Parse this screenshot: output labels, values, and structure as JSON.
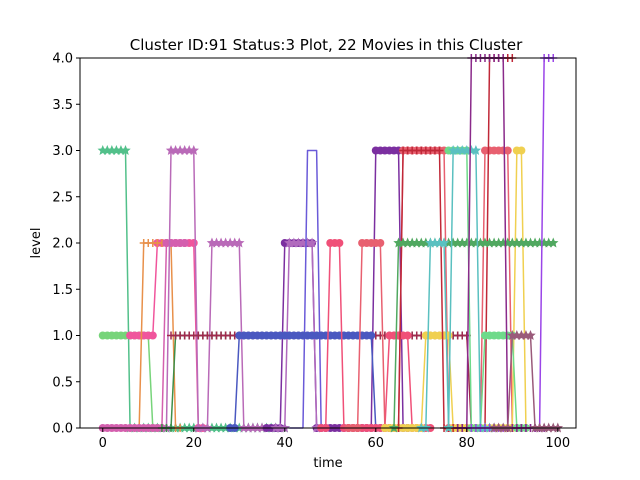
{
  "chart_data": {
    "type": "line",
    "title": "Cluster ID:91 Status:3 Plot, 22 Movies in this Cluster",
    "xlabel": "time",
    "ylabel": "level",
    "xlim": [
      -5,
      104
    ],
    "ylim": [
      0,
      4.0
    ],
    "x_ticks": [
      0,
      20,
      40,
      60,
      80,
      100
    ],
    "y_ticks": [
      0.0,
      0.5,
      1.0,
      1.5,
      2.0,
      2.5,
      3.0,
      3.5,
      4.0
    ],
    "x_tick_labels": [
      "0",
      "20",
      "40",
      "60",
      "80",
      "100"
    ],
    "y_tick_labels": [
      "0.0",
      "0.5",
      "1.0",
      "1.5",
      "2.0",
      "2.5",
      "3.0",
      "3.5",
      "4.0"
    ],
    "grid": false,
    "legend": "none",
    "series_count": 22,
    "series": [
      {
        "color": "#52c08a",
        "marker": "star",
        "x": [
          0,
          1,
          2,
          3,
          4,
          5,
          6,
          7,
          8,
          9,
          10,
          11,
          12,
          13,
          14,
          15,
          16,
          17,
          18,
          19,
          20,
          21,
          22,
          23,
          24,
          25,
          26,
          27,
          28,
          29,
          30,
          31,
          32,
          33,
          34,
          35,
          36,
          37,
          38,
          39,
          40
        ],
        "y": [
          3,
          3,
          3,
          3,
          3,
          3,
          0,
          0,
          0,
          0,
          0,
          0,
          0,
          0,
          0,
          0,
          0,
          0,
          0,
          0,
          0,
          0,
          0,
          0,
          0,
          0,
          0,
          0,
          0,
          0,
          0,
          0,
          0,
          0,
          0,
          0,
          0,
          0,
          0,
          0,
          0
        ]
      },
      {
        "color": "#77d47a",
        "marker": "circle",
        "x": [
          0,
          1,
          2,
          3,
          4,
          5,
          6,
          7,
          8,
          9,
          10,
          11,
          12
        ],
        "y": [
          1,
          1,
          1,
          1,
          1,
          1,
          1,
          1,
          1,
          1,
          1,
          0,
          0
        ]
      },
      {
        "color": "#f0559c",
        "marker": "circle",
        "x": [
          6,
          7,
          8,
          9,
          10,
          11,
          12,
          13,
          14,
          15,
          16,
          17,
          18,
          19,
          20,
          21,
          22
        ],
        "y": [
          1,
          1,
          1,
          1,
          1,
          1,
          2,
          2,
          2,
          2,
          2,
          2,
          2,
          2,
          2,
          0,
          0
        ]
      },
      {
        "color": "#e8904a",
        "marker": "plus",
        "x": [
          5,
          6,
          7,
          8,
          9,
          10,
          11,
          12,
          13,
          14,
          15,
          16,
          17
        ],
        "y": [
          0,
          0,
          0,
          0,
          2,
          2,
          2,
          2,
          2,
          2,
          2,
          0,
          0
        ]
      },
      {
        "color": "#d45fae",
        "marker": "circle",
        "x": [
          0,
          1,
          2,
          3,
          4,
          5,
          6,
          7,
          8,
          9,
          10,
          11,
          12,
          13,
          14,
          15,
          16,
          17,
          18
        ],
        "y": [
          0,
          0,
          0,
          0,
          0,
          0,
          0,
          0,
          0,
          0,
          0,
          0,
          0,
          0,
          2,
          2,
          2,
          2,
          2
        ]
      },
      {
        "color": "#b96ab8",
        "marker": "star",
        "x": [
          14,
          15,
          16,
          17,
          18,
          19,
          20,
          21,
          22,
          23,
          24,
          25,
          26,
          27,
          28,
          29,
          30,
          31,
          32,
          33,
          34,
          35
        ],
        "y": [
          0,
          3,
          3,
          3,
          3,
          3,
          3,
          0,
          0,
          0,
          2,
          2,
          2,
          2,
          2,
          2,
          2,
          0,
          0,
          0,
          0,
          0
        ]
      },
      {
        "color": "#3e8f4a",
        "marker": "plus",
        "x": [
          13,
          14,
          15,
          16,
          17,
          18,
          19,
          20,
          21,
          22,
          23,
          24,
          25,
          26,
          27,
          28,
          29,
          30,
          31,
          32,
          33,
          34,
          35,
          36,
          37,
          38,
          39,
          40,
          41,
          42,
          43,
          44,
          45,
          46,
          47,
          48,
          49,
          50,
          51,
          52,
          53,
          54,
          55,
          56,
          57,
          58,
          59,
          60,
          61,
          62,
          63,
          64,
          65,
          66,
          67,
          68,
          69,
          70,
          71,
          72,
          73,
          74,
          75,
          76,
          77,
          78,
          79,
          80
        ],
        "y": [
          0,
          0,
          0,
          1,
          1,
          1,
          1,
          1,
          1,
          1,
          1,
          1,
          1,
          1,
          1,
          1,
          1,
          1,
          1,
          1,
          1,
          1,
          1,
          1,
          1,
          1,
          1,
          1,
          1,
          1,
          1,
          1,
          1,
          1,
          1,
          1,
          1,
          1,
          1,
          1,
          1,
          1,
          1,
          1,
          1,
          1,
          1,
          1,
          1,
          1,
          1,
          1,
          1,
          1,
          1,
          1,
          1,
          1,
          1,
          1,
          1,
          1,
          1,
          1,
          1,
          1,
          1,
          1
        ]
      },
      {
        "color": "#a02a4e",
        "marker": "plus",
        "x": [
          15,
          16,
          17,
          18,
          19,
          20,
          21,
          22,
          23,
          24,
          25,
          26,
          27,
          28,
          29,
          30,
          31,
          32,
          33,
          34,
          35,
          36,
          37,
          38,
          39,
          40,
          41,
          42,
          43,
          44,
          45,
          46,
          47,
          48,
          49,
          50,
          51,
          52,
          53,
          54,
          55,
          56,
          57,
          58,
          59,
          60,
          61,
          62,
          63,
          64,
          65,
          66,
          67,
          68,
          69,
          70,
          71,
          72,
          73,
          74,
          75,
          76,
          77,
          78,
          79,
          80,
          81,
          82,
          83,
          84,
          85
        ],
        "y": [
          1,
          1,
          1,
          1,
          1,
          1,
          1,
          1,
          1,
          1,
          1,
          1,
          1,
          1,
          1,
          1,
          1,
          1,
          1,
          1,
          1,
          1,
          1,
          1,
          1,
          1,
          1,
          1,
          1,
          1,
          1,
          1,
          1,
          1,
          1,
          1,
          1,
          1,
          1,
          1,
          1,
          1,
          1,
          1,
          1,
          1,
          1,
          1,
          1,
          1,
          1,
          1,
          1,
          1,
          1,
          1,
          1,
          1,
          1,
          1,
          1,
          1,
          1,
          1,
          1,
          1,
          0,
          0,
          0,
          0,
          0
        ]
      },
      {
        "color": "#7b2fa0",
        "marker": "circle",
        "x": [
          36,
          37,
          38,
          39,
          40,
          41,
          42,
          43,
          44,
          45,
          46,
          47,
          48,
          49,
          50,
          51,
          52,
          53,
          54,
          55,
          56,
          57,
          58,
          59,
          60,
          61,
          62,
          63,
          64,
          65,
          66,
          67
        ],
        "y": [
          0,
          0,
          0,
          0,
          2,
          2,
          2,
          2,
          2,
          2,
          2,
          0,
          0,
          0,
          0,
          0,
          0,
          0,
          0,
          0,
          0,
          0,
          0,
          0,
          3,
          3,
          3,
          3,
          3,
          3,
          0,
          0
        ]
      },
      {
        "color": "#b06abd",
        "marker": "star",
        "x": [
          38,
          39,
          40,
          41,
          42,
          43,
          44,
          45,
          46,
          47
        ],
        "y": [
          0,
          0,
          0,
          2,
          2,
          2,
          2,
          2,
          2,
          0
        ]
      },
      {
        "color": "#6a5ad8",
        "marker": "none",
        "x": [
          41,
          42,
          43,
          44,
          45,
          46,
          47,
          48
        ],
        "y": [
          0,
          0,
          0,
          0,
          3,
          3,
          3,
          0
        ]
      },
      {
        "color": "#4a58c0",
        "marker": "circle",
        "x": [
          28,
          29,
          30,
          31,
          32,
          33,
          34,
          35,
          36,
          37,
          38,
          39,
          40,
          41,
          42,
          43,
          44,
          45,
          46,
          47,
          48,
          49,
          50,
          51,
          52,
          53,
          54,
          55,
          56,
          57,
          58,
          59,
          60,
          61,
          62,
          63
        ],
        "y": [
          0,
          0,
          1,
          1,
          1,
          1,
          1,
          1,
          1,
          1,
          1,
          1,
          1,
          1,
          1,
          1,
          1,
          1,
          1,
          1,
          1,
          1,
          1,
          1,
          1,
          1,
          1,
          1,
          1,
          1,
          1,
          1,
          0,
          0,
          0,
          0
        ]
      },
      {
        "color": "#f05078",
        "marker": "circle",
        "x": [
          48,
          49,
          50,
          51,
          52,
          53,
          54,
          55,
          56,
          57,
          58,
          59,
          60,
          61,
          62,
          63,
          64,
          65,
          66,
          67,
          68,
          69,
          70,
          71,
          72
        ],
        "y": [
          0,
          0,
          2,
          2,
          2,
          0,
          0,
          0,
          0,
          0,
          0,
          0,
          0,
          0,
          0,
          1,
          1,
          1,
          1,
          1,
          0,
          0,
          0,
          0,
          0
        ]
      },
      {
        "color": "#e86070",
        "marker": "circle",
        "x": [
          54,
          55,
          56,
          57,
          58,
          59,
          60,
          61,
          62,
          63,
          64,
          65,
          66,
          67,
          68,
          69,
          70,
          71,
          72,
          73,
          74,
          75,
          76,
          77,
          78,
          79,
          80,
          81,
          82,
          83,
          84,
          85,
          86,
          87,
          88,
          89,
          90
        ],
        "y": [
          0,
          0,
          0,
          2,
          2,
          2,
          2,
          2,
          0,
          0,
          0,
          0,
          3,
          3,
          3,
          3,
          3,
          3,
          3,
          3,
          3,
          3,
          0,
          0,
          0,
          0,
          0,
          0,
          0,
          0,
          3,
          3,
          3,
          3,
          3,
          3,
          0
        ]
      },
      {
        "color": "#f0d050",
        "marker": "circle",
        "x": [
          62,
          63,
          64,
          65,
          66,
          67,
          68,
          69,
          70,
          71,
          72,
          73,
          74,
          75,
          76,
          77,
          78,
          79,
          80,
          81,
          82,
          83,
          84,
          85,
          86,
          87,
          88,
          89,
          90,
          91,
          92,
          93
        ],
        "y": [
          0,
          0,
          0,
          0,
          0,
          0,
          0,
          0,
          0,
          1,
          1,
          1,
          1,
          1,
          1,
          0,
          0,
          0,
          0,
          0,
          0,
          0,
          0,
          0,
          0,
          0,
          0,
          0,
          0,
          3,
          3,
          0
        ]
      },
      {
        "color": "#c02838",
        "marker": "plus",
        "x": [
          65,
          66,
          67,
          68,
          69,
          70,
          71,
          72,
          73,
          74,
          75,
          76,
          77,
          78,
          79,
          80,
          81,
          82,
          83,
          84,
          85,
          86,
          87,
          88,
          89,
          90
        ],
        "y": [
          0,
          3,
          3,
          3,
          3,
          3,
          3,
          3,
          3,
          3,
          0,
          0,
          0,
          0,
          0,
          0,
          0,
          0,
          0,
          0,
          4,
          4,
          4,
          4,
          4,
          4
        ]
      },
      {
        "color": "#50a860",
        "marker": "star",
        "x": [
          64,
          65,
          66,
          67,
          68,
          69,
          70,
          71,
          72,
          73,
          74,
          75,
          76,
          77,
          78,
          79,
          80,
          81,
          82,
          83,
          84,
          85,
          86,
          87,
          88,
          89,
          90,
          91,
          92,
          93,
          94,
          95,
          96,
          97,
          98,
          99
        ],
        "y": [
          0,
          2,
          2,
          2,
          2,
          2,
          2,
          2,
          2,
          2,
          2,
          2,
          2,
          2,
          2,
          2,
          2,
          2,
          2,
          2,
          2,
          2,
          2,
          2,
          2,
          2,
          2,
          2,
          2,
          2,
          2,
          2,
          2,
          2,
          2,
          2
        ]
      },
      {
        "color": "#6eda8a",
        "marker": "circle",
        "x": [
          76,
          77,
          78,
          79,
          80,
          81,
          82,
          83,
          84,
          85,
          86,
          87,
          88,
          89,
          90,
          91,
          92,
          93
        ],
        "y": [
          3,
          3,
          3,
          3,
          3,
          0,
          0,
          0,
          1,
          1,
          1,
          1,
          1,
          1,
          1,
          0,
          0,
          0
        ]
      },
      {
        "color": "#5ac0c0",
        "marker": "star",
        "x": [
          70,
          71,
          72,
          73,
          74,
          75,
          76,
          77,
          78,
          79,
          80,
          81,
          82,
          83,
          84,
          85,
          86
        ],
        "y": [
          0,
          0,
          2,
          2,
          2,
          2,
          0,
          3,
          3,
          3,
          3,
          3,
          3,
          0,
          0,
          0,
          0
        ]
      },
      {
        "color": "#9a44e8",
        "marker": "plus",
        "x": [
          80,
          81,
          82,
          83,
          84,
          85,
          86,
          87,
          88,
          89,
          90,
          91,
          92,
          93,
          94,
          95,
          96,
          97,
          98,
          99
        ],
        "y": [
          0,
          0,
          0,
          0,
          0,
          0,
          0,
          0,
          0,
          0,
          0,
          0,
          0,
          0,
          0,
          0,
          0,
          4,
          4,
          4
        ]
      },
      {
        "color": "#8a2a8a",
        "marker": "plus",
        "x": [
          78,
          79,
          80,
          81,
          82,
          83,
          84,
          85,
          86,
          87,
          88,
          89,
          90,
          91,
          92,
          93,
          94,
          95,
          96,
          97
        ],
        "y": [
          0,
          0,
          0,
          4,
          4,
          4,
          4,
          4,
          4,
          4,
          4,
          0,
          0,
          0,
          0,
          0,
          0,
          0,
          0,
          0
        ]
      },
      {
        "color": "#9a5a7a",
        "marker": "star",
        "x": [
          86,
          87,
          88,
          89,
          90,
          91,
          92,
          93,
          94,
          95,
          96,
          97,
          98,
          99,
          100
        ],
        "y": [
          0,
          0,
          0,
          0,
          1,
          1,
          1,
          1,
          1,
          0,
          0,
          0,
          0,
          0,
          0
        ]
      }
    ]
  }
}
